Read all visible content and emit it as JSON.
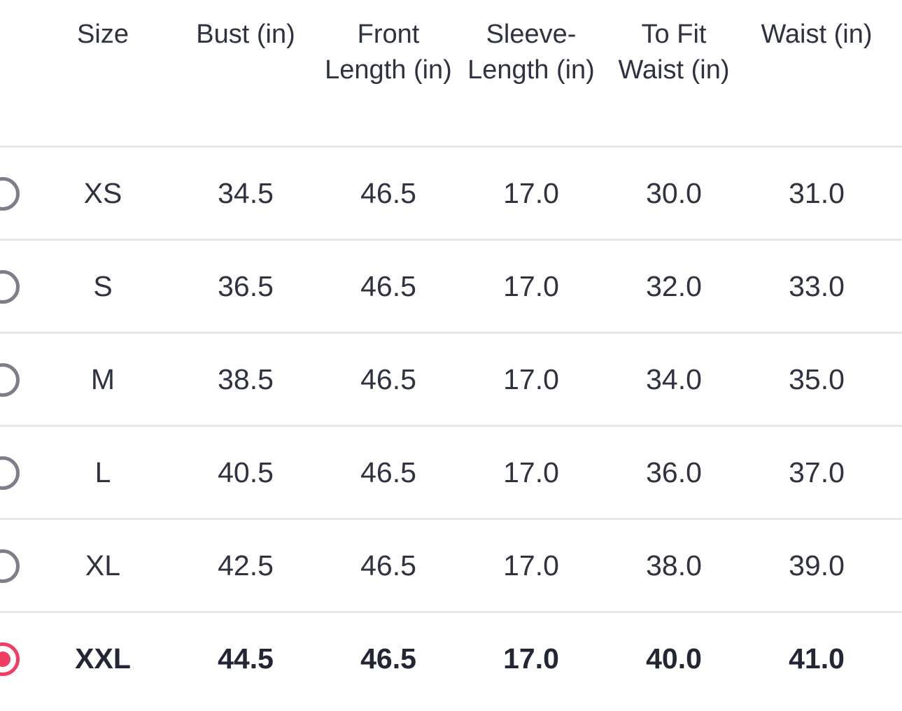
{
  "colors": {
    "accent": "#ee3e63",
    "radio_unselected": "#7c7f8a",
    "divider": "#e8e8ea",
    "text": "#2f3240"
  },
  "table": {
    "headers": [
      [
        "Size"
      ],
      [
        "Bust (in)"
      ],
      [
        "Front",
        "Length (in)"
      ],
      [
        "Sleeve-",
        "Length (in)"
      ],
      [
        "To Fit",
        "Waist (in)"
      ],
      [
        "Waist (in)"
      ]
    ],
    "rows": [
      {
        "selected": false,
        "cells": [
          "XS",
          "34.5",
          "46.5",
          "17.0",
          "30.0",
          "31.0"
        ]
      },
      {
        "selected": false,
        "cells": [
          "S",
          "36.5",
          "46.5",
          "17.0",
          "32.0",
          "33.0"
        ]
      },
      {
        "selected": false,
        "cells": [
          "M",
          "38.5",
          "46.5",
          "17.0",
          "34.0",
          "35.0"
        ]
      },
      {
        "selected": false,
        "cells": [
          "L",
          "40.5",
          "46.5",
          "17.0",
          "36.0",
          "37.0"
        ]
      },
      {
        "selected": false,
        "cells": [
          "XL",
          "42.5",
          "46.5",
          "17.0",
          "38.0",
          "39.0"
        ]
      },
      {
        "selected": true,
        "cells": [
          "XXL",
          "44.5",
          "46.5",
          "17.0",
          "40.0",
          "41.0"
        ]
      }
    ]
  }
}
